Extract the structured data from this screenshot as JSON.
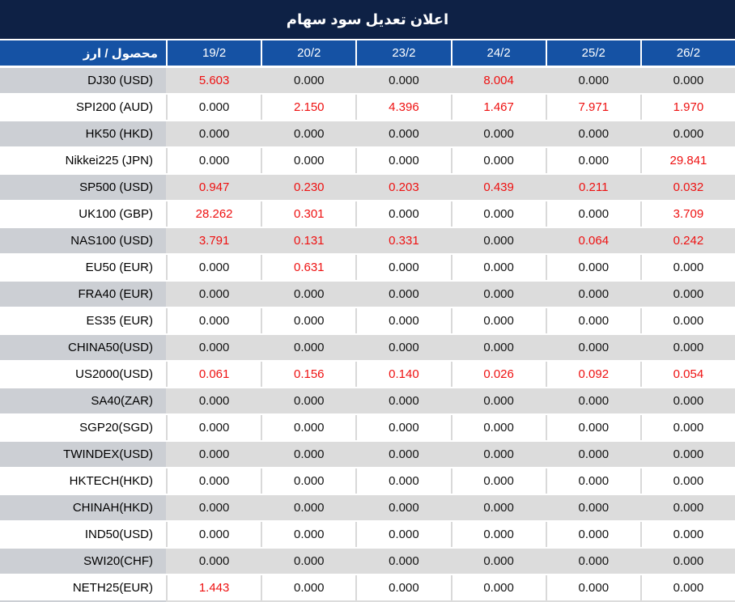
{
  "title": "اعلان تعديل سود سهام",
  "header": {
    "product_label": "محصول / ارز",
    "dates": [
      "19/2",
      "20/2",
      "23/2",
      "24/2",
      "25/2",
      "26/2"
    ]
  },
  "rows": [
    {
      "label": "DJ30 (USD)",
      "values": [
        "5.603",
        "0.000",
        "0.000",
        "8.004",
        "0.000",
        "0.000"
      ],
      "red": [
        true,
        false,
        false,
        true,
        false,
        false
      ]
    },
    {
      "label": "SPI200 (AUD)",
      "values": [
        "0.000",
        "2.150",
        "4.396",
        "1.467",
        "7.971",
        "1.970"
      ],
      "red": [
        false,
        true,
        true,
        true,
        true,
        true
      ]
    },
    {
      "label": "HK50 (HKD)",
      "values": [
        "0.000",
        "0.000",
        "0.000",
        "0.000",
        "0.000",
        "0.000"
      ],
      "red": [
        false,
        false,
        false,
        false,
        false,
        false
      ]
    },
    {
      "label": "Nikkei225 (JPN)",
      "values": [
        "0.000",
        "0.000",
        "0.000",
        "0.000",
        "0.000",
        "29.841"
      ],
      "red": [
        false,
        false,
        false,
        false,
        false,
        true
      ]
    },
    {
      "label": "SP500 (USD)",
      "values": [
        "0.947",
        "0.230",
        "0.203",
        "0.439",
        "0.211",
        "0.032"
      ],
      "red": [
        true,
        true,
        true,
        true,
        true,
        true
      ]
    },
    {
      "label": "UK100 (GBP)",
      "values": [
        "28.262",
        "0.301",
        "0.000",
        "0.000",
        "0.000",
        "3.709"
      ],
      "red": [
        true,
        true,
        false,
        false,
        false,
        true
      ]
    },
    {
      "label": "NAS100 (USD)",
      "values": [
        "3.791",
        "0.131",
        "0.331",
        "0.000",
        "0.064",
        "0.242"
      ],
      "red": [
        true,
        true,
        true,
        false,
        true,
        true
      ]
    },
    {
      "label": "EU50 (EUR)",
      "values": [
        "0.000",
        "0.631",
        "0.000",
        "0.000",
        "0.000",
        "0.000"
      ],
      "red": [
        false,
        true,
        false,
        false,
        false,
        false
      ]
    },
    {
      "label": "FRA40 (EUR)",
      "values": [
        "0.000",
        "0.000",
        "0.000",
        "0.000",
        "0.000",
        "0.000"
      ],
      "red": [
        false,
        false,
        false,
        false,
        false,
        false
      ]
    },
    {
      "label": "ES35 (EUR)",
      "values": [
        "0.000",
        "0.000",
        "0.000",
        "0.000",
        "0.000",
        "0.000"
      ],
      "red": [
        false,
        false,
        false,
        false,
        false,
        false
      ]
    },
    {
      "label": "CHINA50(USD)",
      "values": [
        "0.000",
        "0.000",
        "0.000",
        "0.000",
        "0.000",
        "0.000"
      ],
      "red": [
        false,
        false,
        false,
        false,
        false,
        false
      ]
    },
    {
      "label": "US2000(USD)",
      "values": [
        "0.061",
        "0.156",
        "0.140",
        "0.026",
        "0.092",
        "0.054"
      ],
      "red": [
        true,
        true,
        true,
        true,
        true,
        true
      ]
    },
    {
      "label": "SA40(ZAR)",
      "values": [
        "0.000",
        "0.000",
        "0.000",
        "0.000",
        "0.000",
        "0.000"
      ],
      "red": [
        false,
        false,
        false,
        false,
        false,
        false
      ]
    },
    {
      "label": "SGP20(SGD)",
      "values": [
        "0.000",
        "0.000",
        "0.000",
        "0.000",
        "0.000",
        "0.000"
      ],
      "red": [
        false,
        false,
        false,
        false,
        false,
        false
      ]
    },
    {
      "label": "TWINDEX(USD)",
      "values": [
        "0.000",
        "0.000",
        "0.000",
        "0.000",
        "0.000",
        "0.000"
      ],
      "red": [
        false,
        false,
        false,
        false,
        false,
        false
      ]
    },
    {
      "label": "HKTECH(HKD)",
      "values": [
        "0.000",
        "0.000",
        "0.000",
        "0.000",
        "0.000",
        "0.000"
      ],
      "red": [
        false,
        false,
        false,
        false,
        false,
        false
      ]
    },
    {
      "label": "CHINAH(HKD)",
      "values": [
        "0.000",
        "0.000",
        "0.000",
        "0.000",
        "0.000",
        "0.000"
      ],
      "red": [
        false,
        false,
        false,
        false,
        false,
        false
      ]
    },
    {
      "label": "IND50(USD)",
      "values": [
        "0.000",
        "0.000",
        "0.000",
        "0.000",
        "0.000",
        "0.000"
      ],
      "red": [
        false,
        false,
        false,
        false,
        false,
        false
      ]
    },
    {
      "label": "SWI20(CHF)",
      "values": [
        "0.000",
        "0.000",
        "0.000",
        "0.000",
        "0.000",
        "0.000"
      ],
      "red": [
        false,
        false,
        false,
        false,
        false,
        false
      ]
    },
    {
      "label": "NETH25(EUR)",
      "values": [
        "1.443",
        "0.000",
        "0.000",
        "0.000",
        "0.000",
        "0.000"
      ],
      "red": [
        true,
        false,
        false,
        false,
        false,
        false
      ]
    }
  ],
  "colors": {
    "title_bg": "#0e2145",
    "header_bg": "#1552a4",
    "row_gray": "#dcdcdc",
    "row_gray_label": "#cccfd4",
    "separator": "#d9d9d9",
    "value_red": "#ee1111",
    "value_black": "#141414"
  },
  "chart_data": {
    "type": "table",
    "title": "اعلان تعديل سود سهام",
    "columns": [
      "محصول / ارز",
      "19/2",
      "20/2",
      "23/2",
      "24/2",
      "25/2",
      "26/2"
    ],
    "rows": [
      [
        "DJ30 (USD)",
        "5.603",
        "0.000",
        "0.000",
        "8.004",
        "0.000",
        "0.000"
      ],
      [
        "SPI200 (AUD)",
        "0.000",
        "2.150",
        "4.396",
        "1.467",
        "7.971",
        "1.970"
      ],
      [
        "HK50 (HKD)",
        "0.000",
        "0.000",
        "0.000",
        "0.000",
        "0.000",
        "0.000"
      ],
      [
        "Nikkei225 (JPN)",
        "0.000",
        "0.000",
        "0.000",
        "0.000",
        "0.000",
        "29.841"
      ],
      [
        "SP500 (USD)",
        "0.947",
        "0.230",
        "0.203",
        "0.439",
        "0.211",
        "0.032"
      ],
      [
        "UK100 (GBP)",
        "28.262",
        "0.301",
        "0.000",
        "0.000",
        "0.000",
        "3.709"
      ],
      [
        "NAS100 (USD)",
        "3.791",
        "0.131",
        "0.331",
        "0.000",
        "0.064",
        "0.242"
      ],
      [
        "EU50 (EUR)",
        "0.000",
        "0.631",
        "0.000",
        "0.000",
        "0.000",
        "0.000"
      ],
      [
        "FRA40 (EUR)",
        "0.000",
        "0.000",
        "0.000",
        "0.000",
        "0.000",
        "0.000"
      ],
      [
        "ES35 (EUR)",
        "0.000",
        "0.000",
        "0.000",
        "0.000",
        "0.000",
        "0.000"
      ],
      [
        "CHINA50(USD)",
        "0.000",
        "0.000",
        "0.000",
        "0.000",
        "0.000",
        "0.000"
      ],
      [
        "US2000(USD)",
        "0.061",
        "0.156",
        "0.140",
        "0.026",
        "0.092",
        "0.054"
      ],
      [
        "SA40(ZAR)",
        "0.000",
        "0.000",
        "0.000",
        "0.000",
        "0.000",
        "0.000"
      ],
      [
        "SGP20(SGD)",
        "0.000",
        "0.000",
        "0.000",
        "0.000",
        "0.000",
        "0.000"
      ],
      [
        "TWINDEX(USD)",
        "0.000",
        "0.000",
        "0.000",
        "0.000",
        "0.000",
        "0.000"
      ],
      [
        "HKTECH(HKD)",
        "0.000",
        "0.000",
        "0.000",
        "0.000",
        "0.000",
        "0.000"
      ],
      [
        "CHINAH(HKD)",
        "0.000",
        "0.000",
        "0.000",
        "0.000",
        "0.000",
        "0.000"
      ],
      [
        "IND50(USD)",
        "0.000",
        "0.000",
        "0.000",
        "0.000",
        "0.000",
        "0.000"
      ],
      [
        "SWI20(CHF)",
        "0.000",
        "0.000",
        "0.000",
        "0.000",
        "0.000",
        "0.000"
      ],
      [
        "NETH25(EUR)",
        "1.443",
        "0.000",
        "0.000",
        "0.000",
        "0.000",
        "0.000"
      ]
    ],
    "red_cells_note": "cells flagged red in rows[].red are rendered in red (#ee1111), all others near-black"
  }
}
